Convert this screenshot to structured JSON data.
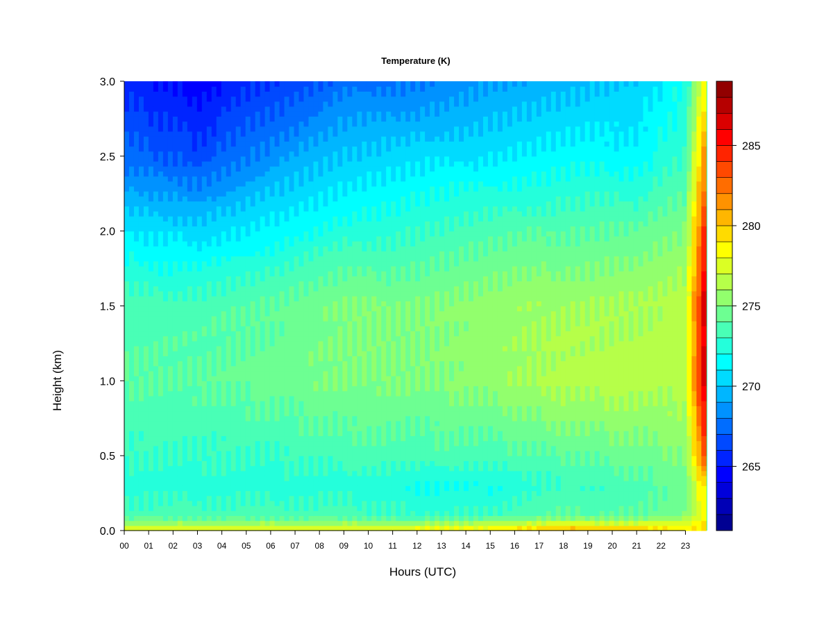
{
  "chart_data": {
    "type": "heatmap",
    "title": "Temperature (K)",
    "xlabel": "Hours (UTC)",
    "ylabel": "Height (km)",
    "xlim": [
      0,
      23.85
    ],
    "ylim": [
      0.0,
      3.0
    ],
    "x_ticks": [
      0,
      1,
      2,
      3,
      4,
      5,
      6,
      7,
      8,
      9,
      10,
      11,
      12,
      13,
      14,
      15,
      16,
      17,
      18,
      19,
      20,
      21,
      22,
      23
    ],
    "x_tick_labels": [
      "00",
      "01",
      "02",
      "03",
      "04",
      "05",
      "06",
      "07",
      "08",
      "09",
      "10",
      "11",
      "12",
      "13",
      "14",
      "15",
      "16",
      "17",
      "18",
      "19",
      "20",
      "21",
      "22",
      "23"
    ],
    "y_ticks": [
      0.0,
      0.5,
      1.0,
      1.5,
      2.0,
      2.5,
      3.0
    ],
    "y_tick_labels": [
      "0.0",
      "0.5",
      "1.0",
      "1.5",
      "2.0",
      "2.5",
      "3.0"
    ],
    "colorbar": {
      "min": 261,
      "max": 289,
      "step": 1,
      "ticks": [
        265,
        270,
        275,
        280,
        285
      ],
      "tick_labels": [
        "265",
        "270",
        "275",
        "280",
        "285"
      ],
      "colormap": "jet"
    },
    "profiles": [
      {
        "hour": 0,
        "heights": [
          0.0,
          0.03,
          0.06,
          0.1,
          0.3,
          0.5,
          1.0,
          1.5,
          2.0,
          2.5,
          3.0
        ],
        "values": [
          278,
          277,
          275,
          273.5,
          272.5,
          273,
          274,
          273.5,
          271,
          267.5,
          265.5
        ]
      },
      {
        "hour": 3,
        "heights": [
          0.0,
          0.03,
          0.06,
          0.1,
          0.3,
          0.5,
          1.0,
          1.5,
          2.0,
          2.5,
          3.0
        ],
        "values": [
          278,
          277,
          275,
          273.5,
          272.5,
          273,
          274,
          273.5,
          270.5,
          266.5,
          264.5
        ]
      },
      {
        "hour": 6,
        "heights": [
          0.0,
          0.03,
          0.06,
          0.1,
          0.3,
          0.5,
          1.0,
          1.5,
          2.0,
          2.5,
          3.0
        ],
        "values": [
          278,
          277,
          275,
          273.5,
          272.5,
          273,
          274.5,
          274,
          271.5,
          268.5,
          266
        ]
      },
      {
        "hour": 9,
        "heights": [
          0.0,
          0.03,
          0.06,
          0.1,
          0.3,
          0.5,
          1.0,
          1.5,
          2.0,
          2.5,
          3.0
        ],
        "values": [
          278,
          277,
          275,
          273.5,
          272.5,
          273.5,
          275,
          275,
          272.5,
          270,
          267.5
        ]
      },
      {
        "hour": 12,
        "heights": [
          0.0,
          0.03,
          0.06,
          0.1,
          0.3,
          0.5,
          1.0,
          1.5,
          2.0,
          2.5,
          3.0
        ],
        "values": [
          278.5,
          277,
          275,
          273,
          272,
          273.5,
          275,
          275,
          273,
          270.5,
          268
        ]
      },
      {
        "hour": 15,
        "heights": [
          0.0,
          0.03,
          0.06,
          0.1,
          0.3,
          0.5,
          1.0,
          1.5,
          2.0,
          2.5,
          3.0
        ],
        "values": [
          279,
          277.5,
          275.5,
          273,
          272,
          273.5,
          275.5,
          275.5,
          273.5,
          271,
          269
        ]
      },
      {
        "hour": 18,
        "heights": [
          0.0,
          0.03,
          0.06,
          0.1,
          0.3,
          0.5,
          1.0,
          1.5,
          2.0,
          2.5,
          3.0
        ],
        "values": [
          281,
          279,
          276.5,
          274,
          273,
          274,
          276.5,
          276,
          274,
          271.5,
          269.5
        ]
      },
      {
        "hour": 21,
        "heights": [
          0.0,
          0.03,
          0.06,
          0.1,
          0.3,
          0.5,
          1.0,
          1.5,
          2.0,
          2.5,
          3.0
        ],
        "values": [
          280,
          278.5,
          276.5,
          274,
          273.5,
          274.5,
          276.5,
          276,
          274,
          271.5,
          270
        ]
      },
      {
        "hour": 23,
        "heights": [
          0.0,
          0.03,
          0.06,
          0.1,
          0.3,
          0.5,
          1.0,
          1.5,
          2.0,
          2.5,
          3.0
        ],
        "values": [
          279,
          278,
          277,
          275,
          274.5,
          275,
          276.5,
          276.5,
          275,
          273,
          272
        ]
      },
      {
        "hour": 23.85,
        "heights": [
          0.0,
          0.03,
          0.06,
          0.1,
          0.3,
          0.5,
          1.0,
          1.5,
          2.0,
          2.5,
          3.0
        ],
        "values": [
          279,
          279,
          279,
          279,
          280,
          284,
          287.5,
          287.5,
          285,
          282,
          279
        ]
      }
    ]
  }
}
